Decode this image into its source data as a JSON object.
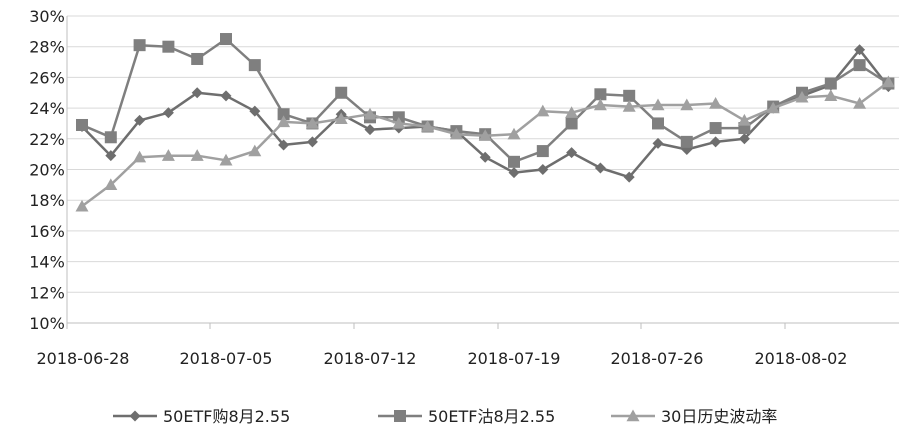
{
  "chart_data": {
    "type": "line",
    "title": "",
    "xlabel": "",
    "ylabel": "",
    "ylim": [
      0.1,
      0.3
    ],
    "y_tick_labels": [
      "10%",
      "12%",
      "14%",
      "16%",
      "18%",
      "20%",
      "22%",
      "24%",
      "26%",
      "28%",
      "30%"
    ],
    "x_tick_labels": [
      "2018-06-28",
      "2018-07-05",
      "2018-07-12",
      "2018-07-19",
      "2018-07-26",
      "2018-08-02"
    ],
    "x": [
      "2018-06-28",
      "2018-06-29",
      "2018-07-02",
      "2018-07-03",
      "2018-07-04",
      "2018-07-05",
      "2018-07-06",
      "2018-07-09",
      "2018-07-10",
      "2018-07-11",
      "2018-07-12",
      "2018-07-13",
      "2018-07-16",
      "2018-07-17",
      "2018-07-18",
      "2018-07-19",
      "2018-07-20",
      "2018-07-23",
      "2018-07-24",
      "2018-07-25",
      "2018-07-26",
      "2018-07-27",
      "2018-07-30",
      "2018-07-31",
      "2018-08-01",
      "2018-08-02",
      "2018-08-03",
      "2018-08-06",
      "2018-08-07"
    ],
    "grid": "horizontal",
    "legend_position": "bottom",
    "series": [
      {
        "name": "50ETF购8月2.55",
        "marker": "diamond",
        "color": "#6e6e6e",
        "values": [
          0.228,
          0.209,
          0.232,
          0.237,
          0.25,
          0.248,
          0.238,
          0.216,
          0.218,
          0.236,
          0.226,
          0.227,
          0.228,
          0.225,
          0.208,
          0.198,
          0.2,
          0.211,
          0.201,
          0.195,
          0.217,
          0.213,
          0.218,
          0.22,
          0.24,
          0.248,
          0.255,
          0.278,
          0.254
        ]
      },
      {
        "name": "50ETF沽8月2.55",
        "marker": "square",
        "color": "#7f7f7f",
        "values": [
          0.229,
          0.221,
          0.281,
          0.28,
          0.272,
          0.285,
          0.268,
          0.236,
          0.23,
          0.25,
          0.234,
          0.234,
          0.228,
          0.225,
          0.223,
          0.205,
          0.212,
          0.23,
          0.249,
          0.248,
          0.23,
          0.218,
          0.227,
          0.227,
          0.241,
          0.25,
          0.256,
          0.268,
          0.256
        ]
      },
      {
        "name": "30日历史波动率",
        "marker": "triangle",
        "color": "#a0a0a0",
        "values": [
          0.176,
          0.19,
          0.208,
          0.209,
          0.209,
          0.206,
          0.212,
          0.231,
          0.23,
          0.233,
          0.236,
          0.23,
          0.228,
          0.223,
          0.222,
          0.223,
          0.238,
          0.237,
          0.242,
          0.241,
          0.242,
          0.242,
          0.243,
          0.232,
          0.24,
          0.247,
          0.248,
          0.243,
          0.257
        ]
      }
    ]
  }
}
